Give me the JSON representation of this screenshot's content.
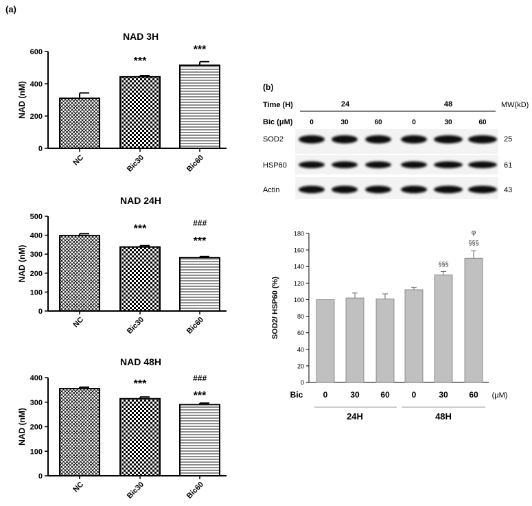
{
  "panel_labels": {
    "a": "(a)",
    "b": "(b)"
  },
  "colors": {
    "bar_gray": "#c0c0c0",
    "line": "#000000",
    "blot_band": "#111111",
    "blot_bg": "#f3f3f3"
  },
  "chart_data": [
    {
      "type": "bar",
      "title": "NAD 3H",
      "ylabel": "NAD (nM)",
      "categories": [
        "NC",
        "Bic30",
        "Bic60"
      ],
      "values": [
        310,
        443,
        515
      ],
      "errors": [
        33,
        8,
        22
      ],
      "ylim": [
        0,
        600
      ],
      "yticks": [
        0,
        200,
        400,
        600
      ],
      "tick_labels": [
        "0",
        "200",
        "400",
        "600"
      ],
      "patterns": [
        "crosshatch",
        "checker",
        "horizontal"
      ],
      "annotations": [
        [],
        [
          "***"
        ],
        [
          "***"
        ]
      ]
    },
    {
      "type": "bar",
      "title": "NAD 24H",
      "ylabel": "NAD (nM)",
      "categories": [
        "NC",
        "Bic30",
        "Bic60"
      ],
      "values": [
        398,
        338,
        282
      ],
      "errors": [
        10,
        7,
        5
      ],
      "ylim": [
        0,
        500
      ],
      "yticks": [
        0,
        100,
        200,
        300,
        400,
        500
      ],
      "tick_labels": [
        "0",
        "100",
        "200",
        "300",
        "400",
        "500"
      ],
      "patterns": [
        "crosshatch",
        "checker",
        "horizontal"
      ],
      "annotations": [
        [],
        [
          "***"
        ],
        [
          "###",
          "***"
        ]
      ]
    },
    {
      "type": "bar",
      "title": "NAD 48H",
      "ylabel": "NAD (nM)",
      "categories": [
        "NC",
        "Bic30",
        "Bic60"
      ],
      "values": [
        355,
        314,
        290
      ],
      "errors": [
        6,
        7,
        6
      ],
      "ylim": [
        0,
        400
      ],
      "yticks": [
        0,
        100,
        200,
        300,
        400
      ],
      "tick_labels": [
        "0",
        "100",
        "200",
        "300",
        "400"
      ],
      "patterns": [
        "crosshatch",
        "checker",
        "horizontal"
      ],
      "annotations": [
        [],
        [
          "***"
        ],
        [
          "###",
          "***"
        ]
      ]
    },
    {
      "type": "bar",
      "title": "",
      "ylabel": "SOD2/ HSP60 (%)",
      "xlabel": "Bic",
      "x_unit": "(μM)",
      "categories": [
        "0",
        "30",
        "60",
        "0",
        "30",
        "60"
      ],
      "groups": [
        {
          "label": "24H",
          "indices": [
            0,
            1,
            2
          ]
        },
        {
          "label": "48H",
          "indices": [
            3,
            4,
            5
          ]
        }
      ],
      "values": [
        100,
        102,
        101,
        112,
        130,
        150
      ],
      "errors": [
        0,
        6,
        6,
        3,
        4,
        9
      ],
      "ylim": [
        0,
        180
      ],
      "yticks": [
        0,
        20,
        40,
        60,
        80,
        100,
        120,
        140,
        160,
        180
      ],
      "tick_labels": [
        "0",
        "20",
        "40",
        "60",
        "80",
        "100",
        "120",
        "140",
        "160",
        "180"
      ],
      "annotations": [
        [],
        [],
        [],
        [],
        [
          "§§§"
        ],
        [
          "φ",
          "§§§"
        ]
      ]
    }
  ],
  "blot": {
    "time_label": "Time (H)",
    "time_values": [
      "24",
      "48"
    ],
    "bic_label": "Bic (μM)",
    "bic_values": [
      "0",
      "30",
      "60",
      "0",
      "30",
      "60"
    ],
    "mw_label": "MW(kD)",
    "rows": [
      {
        "name": "SOD2",
        "mw": "25"
      },
      {
        "name": "HSP60",
        "mw": "61"
      },
      {
        "name": "Actin",
        "mw": "43"
      }
    ]
  }
}
